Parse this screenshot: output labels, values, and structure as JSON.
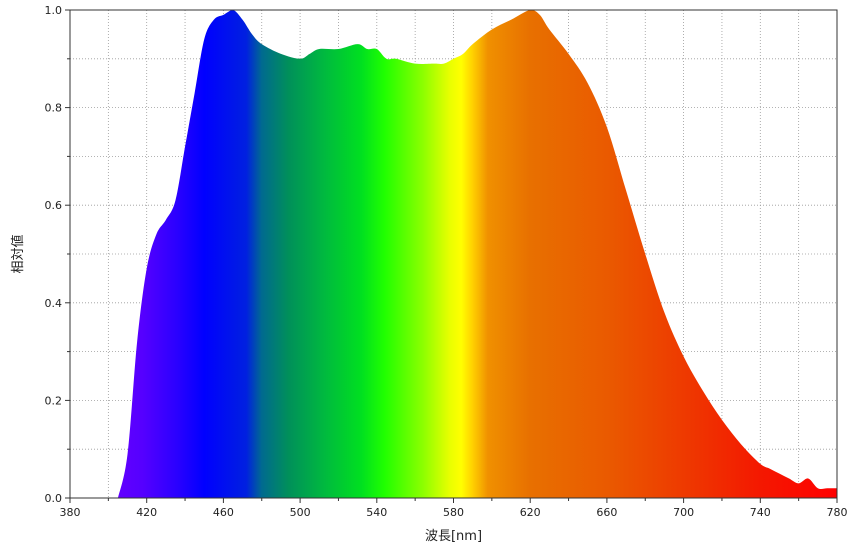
{
  "chart_data": {
    "type": "area",
    "title": "",
    "xlabel": "波長[nm]",
    "ylabel": "相対値",
    "xlim": [
      380,
      780
    ],
    "ylim": [
      0,
      1
    ],
    "x_ticks": [
      380,
      420,
      460,
      500,
      540,
      580,
      620,
      660,
      700,
      740,
      780
    ],
    "x_tick_labels": [
      "380",
      "420",
      "460",
      "500",
      "540",
      "580",
      "620",
      "660",
      "700",
      "740",
      "780"
    ],
    "x_minor_step": 20,
    "y_ticks": [
      0,
      0.2,
      0.4,
      0.6,
      0.8,
      1.0
    ],
    "y_tick_labels": [
      "0.0",
      "0.2",
      "0.4",
      "0.6",
      "0.8",
      "1.0"
    ],
    "y_minor_step": 0.1,
    "grid": true,
    "fill": "visible-spectrum gradient",
    "series": [
      {
        "x": [
          405,
          410,
          415,
          420,
          425,
          430,
          435,
          440,
          445,
          450,
          455,
          460,
          465,
          470,
          475,
          480,
          490,
          500,
          505,
          510,
          520,
          530,
          535,
          540,
          545,
          550,
          560,
          570,
          575,
          580,
          585,
          590,
          600,
          610,
          620,
          625,
          630,
          640,
          650,
          660,
          670,
          680,
          690,
          700,
          710,
          720,
          730,
          740,
          745,
          750,
          755,
          760,
          765,
          770,
          775,
          780
        ],
        "y": [
          0.0,
          0.09,
          0.32,
          0.47,
          0.54,
          0.57,
          0.61,
          0.72,
          0.83,
          0.94,
          0.98,
          0.99,
          1.0,
          0.98,
          0.95,
          0.93,
          0.91,
          0.9,
          0.91,
          0.92,
          0.92,
          0.93,
          0.92,
          0.92,
          0.9,
          0.9,
          0.89,
          0.89,
          0.89,
          0.9,
          0.91,
          0.93,
          0.96,
          0.98,
          1.0,
          0.99,
          0.96,
          0.91,
          0.85,
          0.76,
          0.63,
          0.5,
          0.38,
          0.29,
          0.22,
          0.16,
          0.11,
          0.07,
          0.06,
          0.05,
          0.04,
          0.03,
          0.04,
          0.02,
          0.02,
          0.02
        ]
      }
    ]
  }
}
